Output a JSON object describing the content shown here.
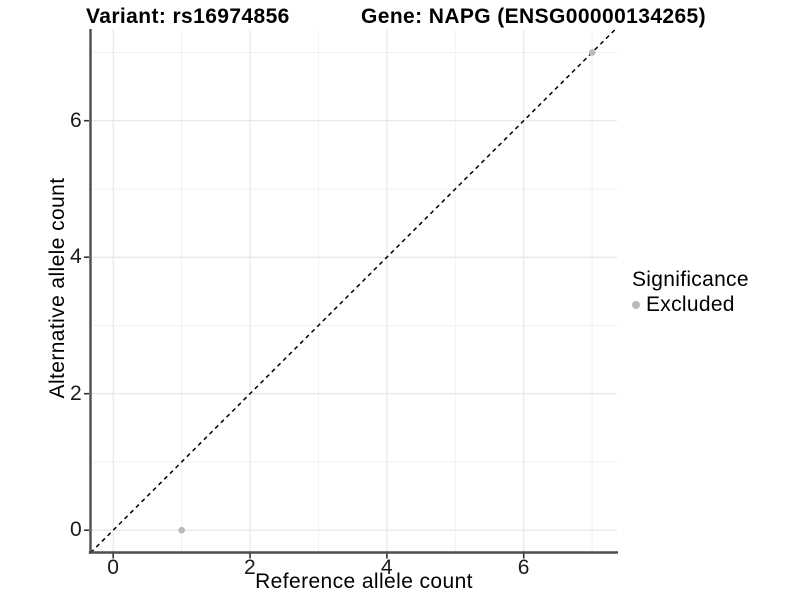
{
  "chart_data": {
    "type": "scatter",
    "title_left": "Variant: rs16974856",
    "title_right": "Gene: NAPG (ENSG00000134265)",
    "xlabel": "Reference allele count",
    "ylabel": "Alternative allele count",
    "xlim": [
      -0.35,
      7.35
    ],
    "ylim": [
      -0.35,
      7.35
    ],
    "xticks": [
      0,
      2,
      4,
      6
    ],
    "yticks": [
      0,
      2,
      4,
      6
    ],
    "minor_gridlines": [
      1,
      3,
      5,
      7
    ],
    "grid": "on",
    "reference_line": {
      "type": "identity",
      "style": "dashed",
      "color": "#000000"
    },
    "series": [
      {
        "name": "Excluded",
        "color": "#b9b9b9",
        "points": [
          [
            1,
            0
          ],
          [
            7,
            7
          ]
        ]
      }
    ],
    "legend": {
      "title": "Significance",
      "position": "right",
      "items": [
        {
          "label": "Excluded",
          "color": "#b9b9b9"
        }
      ]
    }
  },
  "colors": {
    "axis_line": "#4d4d4d",
    "tick_mark": "#333333",
    "grid_major": "#e4e4e4",
    "grid_minor": "#f1f1f1",
    "background": "#ffffff",
    "text": "#000000"
  }
}
